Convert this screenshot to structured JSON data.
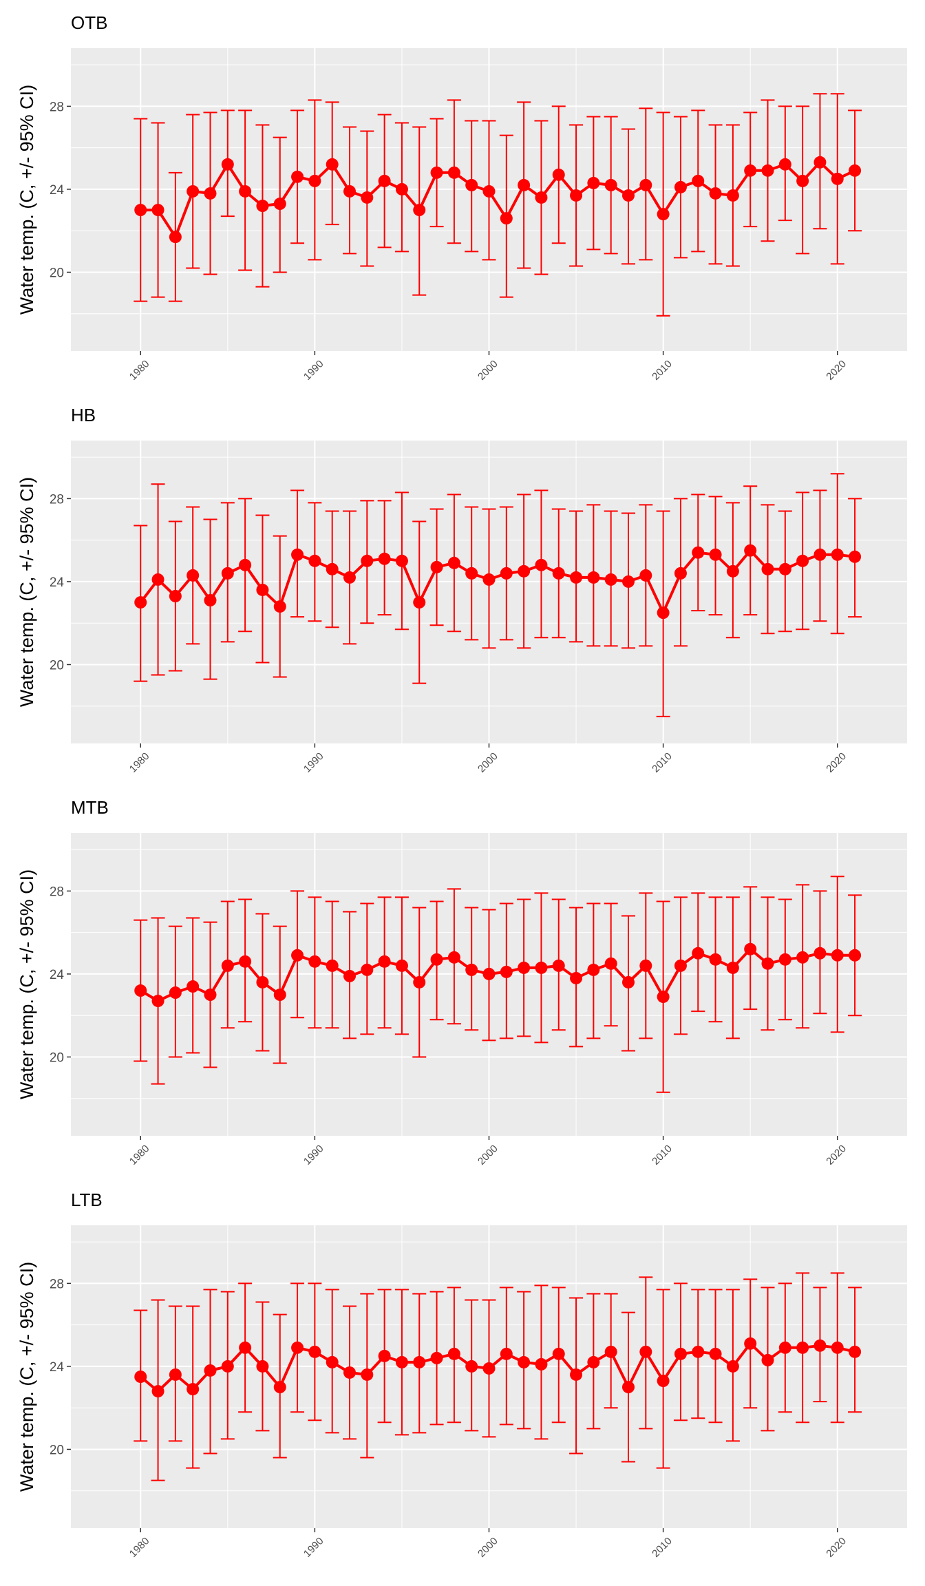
{
  "figure": {
    "ylabel": "Water temp. (C, +/- 95% CI)"
  },
  "chart_data": [
    {
      "type": "line",
      "title": "OTB",
      "ylabel": "Water temp. (C, +/- 95% CI)",
      "x": [
        1980,
        1981,
        1982,
        1983,
        1984,
        1985,
        1986,
        1987,
        1988,
        1989,
        1990,
        1991,
        1992,
        1993,
        1994,
        1995,
        1996,
        1997,
        1998,
        1999,
        2000,
        2001,
        2002,
        2003,
        2004,
        2005,
        2006,
        2007,
        2008,
        2009,
        2010,
        2011,
        2012,
        2013,
        2014,
        2015,
        2016,
        2017,
        2018,
        2019,
        2020,
        2021
      ],
      "values": [
        23.0,
        23.0,
        21.7,
        23.9,
        23.8,
        25.2,
        23.9,
        23.2,
        23.3,
        24.6,
        24.4,
        25.2,
        23.9,
        23.6,
        24.4,
        24.0,
        23.0,
        24.8,
        24.8,
        24.2,
        23.9,
        22.6,
        24.2,
        23.6,
        24.7,
        23.7,
        24.3,
        24.2,
        23.7,
        24.2,
        22.8,
        24.1,
        24.4,
        23.8,
        23.7,
        24.9,
        24.9,
        25.2,
        24.4,
        25.3,
        24.5,
        24.9
      ],
      "lower": [
        18.6,
        18.8,
        18.6,
        20.2,
        19.9,
        22.7,
        20.1,
        19.3,
        20.0,
        21.4,
        20.6,
        22.3,
        20.9,
        20.3,
        21.2,
        21.0,
        18.9,
        22.2,
        21.4,
        21.0,
        20.6,
        18.8,
        20.2,
        19.9,
        21.4,
        20.3,
        21.1,
        20.9,
        20.4,
        20.6,
        17.9,
        20.7,
        21.0,
        20.4,
        20.3,
        22.2,
        21.5,
        22.5,
        20.9,
        22.1,
        20.4,
        22.0
      ],
      "upper": [
        27.4,
        27.2,
        24.8,
        27.6,
        27.7,
        27.8,
        27.8,
        27.1,
        26.5,
        27.8,
        28.3,
        28.2,
        27.0,
        26.8,
        27.6,
        27.2,
        27.0,
        27.4,
        28.3,
        27.3,
        27.3,
        26.6,
        28.2,
        27.3,
        28.0,
        27.1,
        27.5,
        27.5,
        26.9,
        27.9,
        27.7,
        27.5,
        27.8,
        27.1,
        27.1,
        27.7,
        28.3,
        28.0,
        28.0,
        28.6,
        28.6,
        27.8
      ],
      "ylim": [
        16.2,
        30.8
      ],
      "yticks": [
        20,
        24,
        28
      ],
      "xticks": [
        1980,
        1990,
        2000,
        2010,
        2020
      ],
      "grid": true,
      "color": "#ff0000",
      "background": "#ebebeb"
    },
    {
      "type": "line",
      "title": "HB",
      "ylabel": "Water temp. (C, +/- 95% CI)",
      "x": [
        1980,
        1981,
        1982,
        1983,
        1984,
        1985,
        1986,
        1987,
        1988,
        1989,
        1990,
        1991,
        1992,
        1993,
        1994,
        1995,
        1996,
        1997,
        1998,
        1999,
        2000,
        2001,
        2002,
        2003,
        2004,
        2005,
        2006,
        2007,
        2008,
        2009,
        2010,
        2011,
        2012,
        2013,
        2014,
        2015,
        2016,
        2017,
        2018,
        2019,
        2020,
        2021
      ],
      "values": [
        23.0,
        24.1,
        23.3,
        24.3,
        23.1,
        24.4,
        24.8,
        23.6,
        22.8,
        25.3,
        25.0,
        24.6,
        24.2,
        25.0,
        25.1,
        25.0,
        23.0,
        24.7,
        24.9,
        24.4,
        24.1,
        24.4,
        24.5,
        24.8,
        24.4,
        24.2,
        24.2,
        24.1,
        24.0,
        24.3,
        22.5,
        24.4,
        25.4,
        25.3,
        24.5,
        25.5,
        24.6,
        24.6,
        25.0,
        25.3,
        25.3,
        25.2
      ],
      "lower": [
        19.2,
        19.5,
        19.7,
        21.0,
        19.3,
        21.1,
        21.6,
        20.1,
        19.4,
        22.3,
        22.1,
        21.8,
        21.0,
        22.0,
        22.4,
        21.7,
        19.1,
        21.9,
        21.6,
        21.2,
        20.8,
        21.2,
        20.8,
        21.3,
        21.3,
        21.1,
        20.9,
        20.9,
        20.8,
        20.9,
        17.5,
        20.9,
        22.6,
        22.4,
        21.3,
        22.4,
        21.5,
        21.6,
        21.7,
        22.1,
        21.5,
        22.3
      ],
      "upper": [
        26.7,
        28.7,
        26.9,
        27.6,
        27.0,
        27.8,
        28.0,
        27.2,
        26.2,
        28.4,
        27.8,
        27.4,
        27.4,
        27.9,
        27.9,
        28.3,
        26.9,
        27.5,
        28.2,
        27.6,
        27.5,
        27.6,
        28.2,
        28.4,
        27.5,
        27.4,
        27.7,
        27.4,
        27.3,
        27.7,
        27.4,
        28.0,
        28.2,
        28.1,
        27.8,
        28.6,
        27.7,
        27.4,
        28.3,
        28.4,
        29.2,
        28.0
      ],
      "ylim": [
        16.2,
        30.8
      ],
      "yticks": [
        20,
        24,
        28
      ],
      "xticks": [
        1980,
        1990,
        2000,
        2010,
        2020
      ],
      "grid": true,
      "color": "#ff0000",
      "background": "#ebebeb"
    },
    {
      "type": "line",
      "title": "MTB",
      "ylabel": "Water temp. (C, +/- 95% CI)",
      "x": [
        1980,
        1981,
        1982,
        1983,
        1984,
        1985,
        1986,
        1987,
        1988,
        1989,
        1990,
        1991,
        1992,
        1993,
        1994,
        1995,
        1996,
        1997,
        1998,
        1999,
        2000,
        2001,
        2002,
        2003,
        2004,
        2005,
        2006,
        2007,
        2008,
        2009,
        2010,
        2011,
        2012,
        2013,
        2014,
        2015,
        2016,
        2017,
        2018,
        2019,
        2020,
        2021
      ],
      "values": [
        23.2,
        22.7,
        23.1,
        23.4,
        23.0,
        24.4,
        24.6,
        23.6,
        23.0,
        24.9,
        24.6,
        24.4,
        23.9,
        24.2,
        24.6,
        24.4,
        23.6,
        24.7,
        24.8,
        24.2,
        24.0,
        24.1,
        24.3,
        24.3,
        24.4,
        23.8,
        24.2,
        24.5,
        23.6,
        24.4,
        22.9,
        24.4,
        25.0,
        24.7,
        24.3,
        25.2,
        24.5,
        24.7,
        24.8,
        25.0,
        24.9,
        24.9
      ],
      "lower": [
        19.8,
        18.7,
        20.0,
        20.2,
        19.5,
        21.4,
        21.7,
        20.3,
        19.7,
        21.9,
        21.4,
        21.4,
        20.9,
        21.1,
        21.4,
        21.1,
        20.0,
        21.8,
        21.6,
        21.3,
        20.8,
        20.9,
        21.0,
        20.7,
        21.3,
        20.5,
        20.9,
        21.5,
        20.3,
        20.9,
        18.3,
        21.1,
        22.2,
        21.7,
        20.9,
        22.3,
        21.3,
        21.8,
        21.4,
        22.1,
        21.2,
        22.0
      ],
      "upper": [
        26.6,
        26.7,
        26.3,
        26.7,
        26.5,
        27.5,
        27.6,
        26.9,
        26.3,
        28.0,
        27.7,
        27.5,
        27.0,
        27.4,
        27.7,
        27.7,
        27.2,
        27.5,
        28.1,
        27.2,
        27.1,
        27.4,
        27.6,
        27.9,
        27.6,
        27.2,
        27.4,
        27.4,
        26.8,
        27.9,
        27.5,
        27.7,
        27.9,
        27.7,
        27.7,
        28.2,
        27.7,
        27.6,
        28.3,
        28.0,
        28.7,
        27.8
      ],
      "ylim": [
        16.2,
        30.8
      ],
      "yticks": [
        20,
        24,
        28
      ],
      "xticks": [
        1980,
        1990,
        2000,
        2010,
        2020
      ],
      "grid": true,
      "color": "#ff0000",
      "background": "#ebebeb"
    },
    {
      "type": "line",
      "title": "LTB",
      "ylabel": "Water temp. (C, +/- 95% CI)",
      "x": [
        1980,
        1981,
        1982,
        1983,
        1984,
        1985,
        1986,
        1987,
        1988,
        1989,
        1990,
        1991,
        1992,
        1993,
        1994,
        1995,
        1996,
        1997,
        1998,
        1999,
        2000,
        2001,
        2002,
        2003,
        2004,
        2005,
        2006,
        2007,
        2008,
        2009,
        2010,
        2011,
        2012,
        2013,
        2014,
        2015,
        2016,
        2017,
        2018,
        2019,
        2020,
        2021
      ],
      "values": [
        23.5,
        22.8,
        23.6,
        22.9,
        23.8,
        24.0,
        24.9,
        24.0,
        23.0,
        24.9,
        24.7,
        24.2,
        23.7,
        23.6,
        24.5,
        24.2,
        24.2,
        24.4,
        24.6,
        24.0,
        23.9,
        24.6,
        24.2,
        24.1,
        24.6,
        23.6,
        24.2,
        24.7,
        23.0,
        24.7,
        23.3,
        24.6,
        24.7,
        24.6,
        24.0,
        25.1,
        24.3,
        24.9,
        24.9,
        25.0,
        24.9,
        24.7
      ],
      "lower": [
        20.4,
        18.5,
        20.4,
        19.1,
        19.8,
        20.5,
        21.8,
        20.9,
        19.6,
        21.8,
        21.4,
        20.8,
        20.5,
        19.6,
        21.3,
        20.7,
        20.8,
        21.2,
        21.3,
        20.9,
        20.6,
        21.2,
        21.0,
        20.5,
        21.3,
        19.8,
        21.0,
        22.0,
        19.4,
        21.0,
        19.1,
        21.4,
        21.5,
        21.3,
        20.4,
        22.0,
        20.9,
        21.8,
        21.3,
        22.3,
        21.3,
        21.8
      ],
      "upper": [
        26.7,
        27.2,
        26.9,
        26.9,
        27.7,
        27.6,
        28.0,
        27.1,
        26.5,
        28.0,
        28.0,
        27.7,
        26.9,
        27.5,
        27.7,
        27.7,
        27.5,
        27.6,
        27.8,
        27.2,
        27.2,
        27.8,
        27.6,
        27.9,
        27.8,
        27.3,
        27.5,
        27.5,
        26.6,
        28.3,
        27.7,
        28.0,
        27.7,
        27.7,
        27.7,
        28.2,
        27.8,
        28.0,
        28.5,
        27.8,
        28.5,
        27.8
      ],
      "ylim": [
        16.2,
        30.8
      ],
      "yticks": [
        20,
        24,
        28
      ],
      "xticks": [
        1980,
        1990,
        2000,
        2010,
        2020
      ],
      "grid": true,
      "color": "#ff0000",
      "background": "#ebebeb"
    }
  ]
}
